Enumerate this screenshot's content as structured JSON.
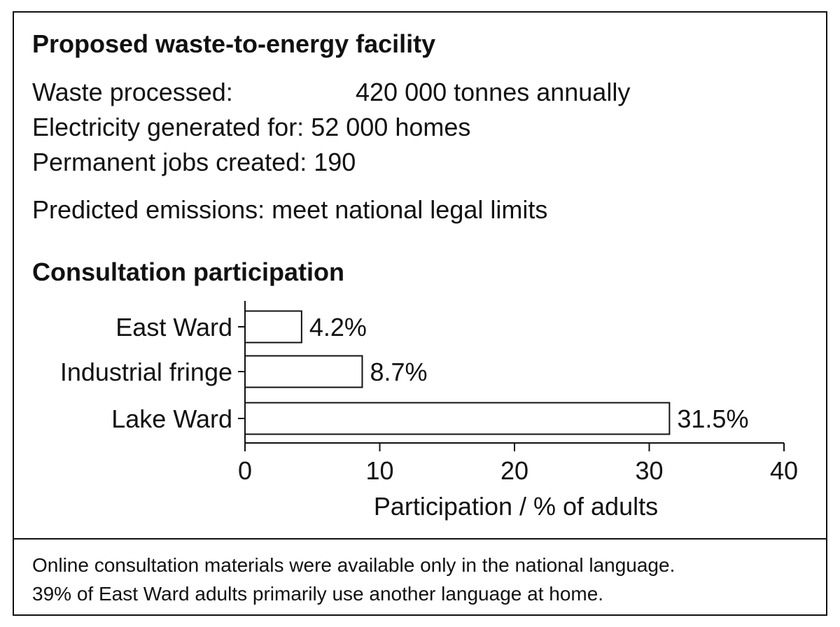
{
  "facility": {
    "title": "Proposed waste-to-energy facility",
    "rows": [
      {
        "label": "Waste processed:",
        "value": "420 000 tonnes annually"
      },
      {
        "label": "Electricity generated for:",
        "value": "52 000 homes"
      },
      {
        "label": "Permanent jobs created:",
        "value": "190"
      }
    ],
    "emissions": {
      "label": "Predicted emissions:",
      "value": "meet national legal limits"
    }
  },
  "consultation": {
    "title": "Consultation participation"
  },
  "chart_data": {
    "type": "bar",
    "orientation": "horizontal",
    "categories": [
      "East Ward",
      "Industrial fringe",
      "Lake Ward"
    ],
    "values": [
      4.2,
      8.7,
      31.5
    ],
    "data_labels": [
      "4.2%",
      "8.7%",
      "31.5%"
    ],
    "xlabel": "Participation / % of adults",
    "xlim": [
      0,
      40
    ],
    "xticks": [
      0,
      10,
      20,
      30,
      40
    ],
    "grid": false,
    "colors": {
      "bar_fill": "#ffffff",
      "bar_stroke": "#111111"
    }
  },
  "footnote": {
    "lines": [
      "Online consultation materials were available only in the national language.",
      "39% of East Ward adults primarily use another language at home."
    ]
  }
}
